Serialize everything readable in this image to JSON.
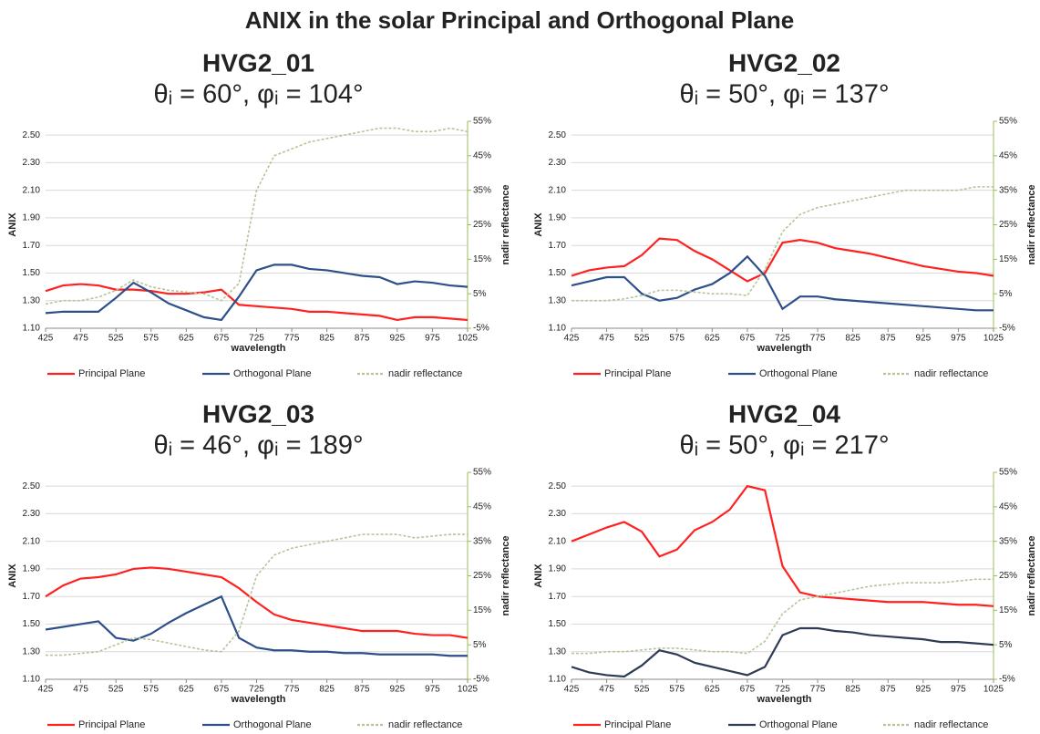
{
  "title": "ANIX in the solar Principal and Orthogonal Plane",
  "chart_data": [
    {
      "type": "line",
      "title": "HVG2_01",
      "subtitle": "θᵢ = 60°, φᵢ = 104°",
      "xlabel": "wavelength",
      "ylabel": "ANIX",
      "y2label": "nadir reflectance",
      "x": [
        425,
        450,
        475,
        500,
        525,
        550,
        575,
        600,
        625,
        650,
        675,
        700,
        725,
        750,
        775,
        800,
        825,
        850,
        875,
        900,
        925,
        950,
        975,
        1000,
        1025
      ],
      "xlim": [
        425,
        1025
      ],
      "xticks": [
        425,
        475,
        525,
        575,
        625,
        675,
        725,
        775,
        825,
        875,
        925,
        975,
        1025
      ],
      "ylim": [
        1.1,
        2.6
      ],
      "yticks": [
        {
          "value": 1.1,
          "label": "1.10"
        },
        {
          "value": 1.3,
          "label": "1.30"
        },
        {
          "value": 1.5,
          "label": "1.50"
        },
        {
          "value": 1.7,
          "label": "1.70"
        },
        {
          "value": 1.9,
          "label": "1.90"
        },
        {
          "value": 2.1,
          "label": "2.10"
        },
        {
          "value": 2.3,
          "label": "2.30"
        },
        {
          "value": 2.5,
          "label": "2.50"
        }
      ],
      "y2lim": [
        -5,
        55
      ],
      "y2ticks": [
        {
          "value": -5,
          "label": "-5%"
        },
        {
          "value": 5,
          "label": "5%"
        },
        {
          "value": 15,
          "label": "15%"
        },
        {
          "value": 25,
          "label": "25%"
        },
        {
          "value": 35,
          "label": "35%"
        },
        {
          "value": 45,
          "label": "45%"
        },
        {
          "value": 55,
          "label": "55%"
        }
      ],
      "grid": true,
      "legend": "bottom",
      "series": [
        {
          "name": "Principal Plane",
          "color": "#ff2020",
          "values": [
            1.37,
            1.41,
            1.42,
            1.41,
            1.38,
            1.38,
            1.37,
            1.35,
            1.35,
            1.36,
            1.38,
            1.27,
            1.26,
            1.25,
            1.24,
            1.22,
            1.22,
            1.21,
            1.2,
            1.19,
            1.16,
            1.18,
            1.18,
            1.17,
            1.16
          ]
        },
        {
          "name": "Orthogonal Plane",
          "color": "#2e4f8a",
          "values": [
            1.21,
            1.22,
            1.22,
            1.22,
            1.32,
            1.43,
            1.36,
            1.28,
            1.23,
            1.18,
            1.16,
            1.33,
            1.52,
            1.56,
            1.56,
            1.53,
            1.52,
            1.5,
            1.48,
            1.47,
            1.42,
            1.44,
            1.43,
            1.41,
            1.4
          ]
        },
        {
          "name": "nadir reflectance",
          "color": "#b5c59a",
          "axis": "y2",
          "values": [
            2,
            3,
            3,
            4,
            6,
            9,
            7,
            6,
            5.5,
            5,
            3,
            8,
            35,
            45,
            47,
            49,
            50,
            51,
            52,
            53,
            53,
            52,
            52,
            53,
            52
          ]
        }
      ]
    },
    {
      "type": "line",
      "title": "HVG2_02",
      "subtitle": "θᵢ = 50°, φᵢ = 137°",
      "xlabel": "wavelength",
      "ylabel": "ANIX",
      "y2label": "nadir reflectance",
      "x": [
        425,
        450,
        475,
        500,
        525,
        550,
        575,
        600,
        625,
        650,
        675,
        700,
        725,
        750,
        775,
        800,
        825,
        850,
        875,
        900,
        925,
        950,
        975,
        1000,
        1025
      ],
      "xlim": [
        425,
        1025
      ],
      "xticks": [
        425,
        475,
        525,
        575,
        625,
        675,
        725,
        775,
        825,
        875,
        925,
        975,
        1025
      ],
      "ylim": [
        1.1,
        2.6
      ],
      "yticks": [
        {
          "value": 1.1,
          "label": "1.10"
        },
        {
          "value": 1.3,
          "label": "1.30"
        },
        {
          "value": 1.5,
          "label": "1.50"
        },
        {
          "value": 1.7,
          "label": "1.70"
        },
        {
          "value": 1.9,
          "label": "1.90"
        },
        {
          "value": 2.1,
          "label": "2.10"
        },
        {
          "value": 2.3,
          "label": "2.30"
        },
        {
          "value": 2.5,
          "label": "2.50"
        }
      ],
      "y2lim": [
        -5,
        55
      ],
      "y2ticks": [
        {
          "value": -5,
          "label": "-5%"
        },
        {
          "value": 5,
          "label": "5%"
        },
        {
          "value": 15,
          "label": "15%"
        },
        {
          "value": 25,
          "label": "25%"
        },
        {
          "value": 35,
          "label": "35%"
        },
        {
          "value": 45,
          "label": "45%"
        },
        {
          "value": 55,
          "label": "55%"
        }
      ],
      "grid": true,
      "legend": "bottom",
      "series": [
        {
          "name": "Principal Plane",
          "color": "#ff2020",
          "values": [
            1.48,
            1.52,
            1.54,
            1.55,
            1.63,
            1.75,
            1.74,
            1.66,
            1.6,
            1.52,
            1.44,
            1.5,
            1.72,
            1.74,
            1.72,
            1.68,
            1.66,
            1.64,
            1.61,
            1.58,
            1.55,
            1.53,
            1.51,
            1.5,
            1.48
          ]
        },
        {
          "name": "Orthogonal Plane",
          "color": "#2e4f8a",
          "values": [
            1.41,
            1.44,
            1.47,
            1.47,
            1.35,
            1.3,
            1.32,
            1.38,
            1.42,
            1.5,
            1.62,
            1.48,
            1.24,
            1.33,
            1.33,
            1.31,
            1.3,
            1.29,
            1.28,
            1.27,
            1.26,
            1.25,
            1.24,
            1.23,
            1.23
          ]
        },
        {
          "name": "nadir reflectance",
          "color": "#b5c59a",
          "axis": "y2",
          "values": [
            3,
            3,
            3,
            3.5,
            4.5,
            6,
            6,
            5.5,
            5,
            5,
            4.5,
            12,
            23,
            28,
            30,
            31,
            32,
            33,
            34,
            35,
            35,
            35,
            35,
            36,
            36
          ]
        }
      ]
    },
    {
      "type": "line",
      "title": "HVG2_03",
      "subtitle": "θᵢ = 46°, φᵢ = 189°",
      "xlabel": "wavelength",
      "ylabel": "ANIX",
      "y2label": "nadir reflectance",
      "x": [
        425,
        450,
        475,
        500,
        525,
        550,
        575,
        600,
        625,
        650,
        675,
        700,
        725,
        750,
        775,
        800,
        825,
        850,
        875,
        900,
        925,
        950,
        975,
        1000,
        1025
      ],
      "xlim": [
        425,
        1025
      ],
      "xticks": [
        425,
        475,
        525,
        575,
        625,
        675,
        725,
        775,
        825,
        875,
        925,
        975,
        1025
      ],
      "ylim": [
        1.1,
        2.6
      ],
      "yticks": [
        {
          "value": 1.1,
          "label": "1.10"
        },
        {
          "value": 1.3,
          "label": "1.30"
        },
        {
          "value": 1.5,
          "label": "1.50"
        },
        {
          "value": 1.7,
          "label": "1.70"
        },
        {
          "value": 1.9,
          "label": "1.90"
        },
        {
          "value": 2.1,
          "label": "2.10"
        },
        {
          "value": 2.3,
          "label": "2.30"
        },
        {
          "value": 2.5,
          "label": "2.50"
        }
      ],
      "y2lim": [
        -5,
        55
      ],
      "y2ticks": [
        {
          "value": -5,
          "label": "-5%"
        },
        {
          "value": 5,
          "label": "5%"
        },
        {
          "value": 15,
          "label": "15%"
        },
        {
          "value": 25,
          "label": "25%"
        },
        {
          "value": 35,
          "label": "35%"
        },
        {
          "value": 45,
          "label": "45%"
        },
        {
          "value": 55,
          "label": "55%"
        }
      ],
      "grid": true,
      "legend": "bottom",
      "series": [
        {
          "name": "Principal Plane",
          "color": "#ff2020",
          "values": [
            1.7,
            1.78,
            1.83,
            1.84,
            1.86,
            1.9,
            1.91,
            1.9,
            1.88,
            1.86,
            1.84,
            1.76,
            1.66,
            1.57,
            1.53,
            1.51,
            1.49,
            1.47,
            1.45,
            1.45,
            1.45,
            1.43,
            1.42,
            1.42,
            1.4
          ]
        },
        {
          "name": "Orthogonal Plane",
          "color": "#2e4f8a",
          "values": [
            1.46,
            1.48,
            1.5,
            1.52,
            1.4,
            1.38,
            1.43,
            1.51,
            1.58,
            1.64,
            1.7,
            1.4,
            1.33,
            1.31,
            1.31,
            1.3,
            1.3,
            1.29,
            1.29,
            1.28,
            1.28,
            1.28,
            1.28,
            1.27,
            1.27
          ]
        },
        {
          "name": "nadir reflectance",
          "color": "#b5c59a",
          "axis": "y2",
          "values": [
            2,
            2,
            2.5,
            3,
            5,
            7,
            6.5,
            5.5,
            4.5,
            3.5,
            3,
            9,
            25,
            31,
            33,
            34,
            35,
            36,
            37,
            37,
            37,
            36,
            36.5,
            37,
            37
          ]
        }
      ]
    },
    {
      "type": "line",
      "title": "HVG2_04",
      "subtitle": "θᵢ = 50°, φᵢ = 217°",
      "xlabel": "wavelength",
      "ylabel": "ANIX",
      "y2label": "nadir reflectance",
      "x": [
        425,
        450,
        475,
        500,
        525,
        550,
        575,
        600,
        625,
        650,
        675,
        700,
        725,
        750,
        775,
        800,
        825,
        850,
        875,
        900,
        925,
        950,
        975,
        1000,
        1025
      ],
      "xlim": [
        425,
        1025
      ],
      "xticks": [
        425,
        475,
        525,
        575,
        625,
        675,
        725,
        775,
        825,
        875,
        925,
        975,
        1025
      ],
      "ylim": [
        1.1,
        2.6
      ],
      "yticks": [
        {
          "value": 1.1,
          "label": "1.10"
        },
        {
          "value": 1.3,
          "label": "1.30"
        },
        {
          "value": 1.5,
          "label": "1.50"
        },
        {
          "value": 1.7,
          "label": "1.70"
        },
        {
          "value": 1.9,
          "label": "1.90"
        },
        {
          "value": 2.1,
          "label": "2.10"
        },
        {
          "value": 2.3,
          "label": "2.30"
        },
        {
          "value": 2.5,
          "label": "2.50"
        }
      ],
      "y2lim": [
        -5,
        55
      ],
      "y2ticks": [
        {
          "value": -5,
          "label": "-5%"
        },
        {
          "value": 5,
          "label": "5%"
        },
        {
          "value": 15,
          "label": "15%"
        },
        {
          "value": 25,
          "label": "25%"
        },
        {
          "value": 35,
          "label": "35%"
        },
        {
          "value": 45,
          "label": "45%"
        },
        {
          "value": 55,
          "label": "55%"
        }
      ],
      "grid": true,
      "legend": "bottom",
      "series": [
        {
          "name": "Principal Plane",
          "color": "#ff2020",
          "values": [
            2.1,
            2.15,
            2.2,
            2.24,
            2.17,
            1.99,
            2.04,
            2.18,
            2.24,
            2.33,
            2.5,
            2.47,
            1.92,
            1.73,
            1.7,
            1.69,
            1.68,
            1.67,
            1.66,
            1.66,
            1.66,
            1.65,
            1.64,
            1.64,
            1.63
          ]
        },
        {
          "name": "Orthogonal Plane",
          "color": "#2e3b55",
          "values": [
            1.19,
            1.15,
            1.13,
            1.12,
            1.2,
            1.31,
            1.28,
            1.22,
            1.19,
            1.16,
            1.13,
            1.19,
            1.42,
            1.47,
            1.47,
            1.45,
            1.44,
            1.42,
            1.41,
            1.4,
            1.39,
            1.37,
            1.37,
            1.36,
            1.35
          ]
        },
        {
          "name": "nadir reflectance",
          "color": "#b5c59a",
          "axis": "y2",
          "values": [
            2.5,
            2.5,
            3,
            3,
            3.5,
            4,
            4,
            3.5,
            3,
            3,
            2.5,
            6,
            14,
            18,
            19,
            20,
            21,
            22,
            22.5,
            23,
            23,
            23,
            23.5,
            24,
            24
          ]
        }
      ]
    }
  ]
}
